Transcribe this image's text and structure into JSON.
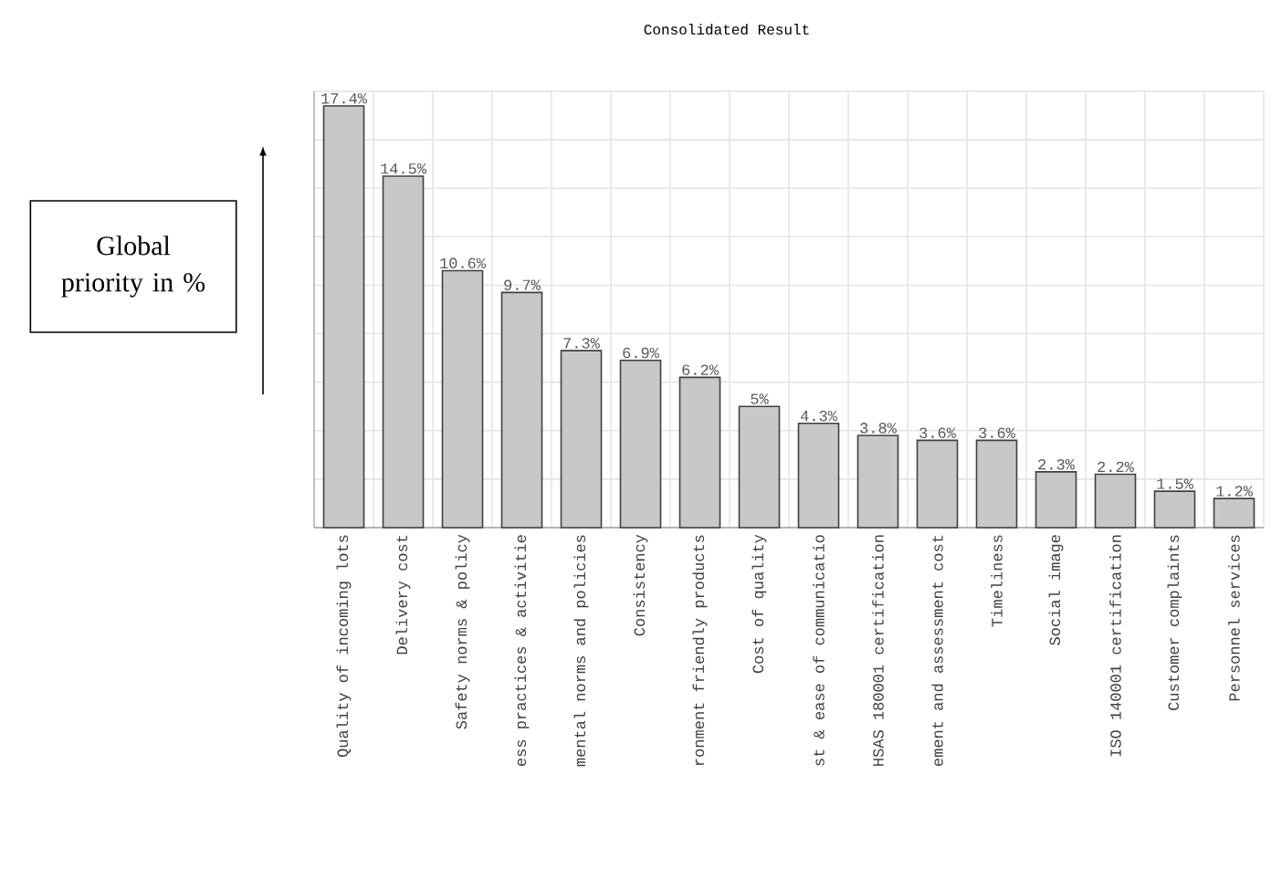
{
  "chart_data": {
    "type": "bar",
    "title": "Consolidated Result",
    "ylabel": "Global priority in %",
    "categories": [
      "Quality of incoming lots",
      "Delivery cost",
      "Safety norms & policy",
      "ess practices & activitie",
      "mental norms and policies",
      "Consistency",
      "ronment friendly products",
      "Cost of quality",
      "st & ease of communicatio",
      "HSAS 180001 certification",
      "ement and assessment cost",
      "Timeliness",
      "Social image",
      "ISO 140001 certification",
      "Customer complaints",
      "Personnel services"
    ],
    "values": [
      17.4,
      14.5,
      10.6,
      9.7,
      7.3,
      6.9,
      6.2,
      5,
      4.3,
      3.8,
      3.6,
      3.6,
      2.3,
      2.2,
      1.5,
      1.2
    ],
    "value_labels": [
      "17.4%",
      "14.5%",
      "10.6%",
      "9.7%",
      "7.3%",
      "6.9%",
      "6.2%",
      "5%",
      "4.3%",
      "3.8%",
      "3.6%",
      "3.6%",
      "2.3%",
      "2.2%",
      "1.5%",
      "1.2%"
    ],
    "color": "#c8c8c8",
    "ylim": [
      0,
      18
    ],
    "yticks": [
      {
        "value": 0,
        "label": null
      },
      {
        "value": 2,
        "label": null
      },
      {
        "value": 4,
        "label": null
      },
      {
        "value": 6,
        "label": null
      },
      {
        "value": 8,
        "label": null
      },
      {
        "value": 10,
        "label": null
      },
      {
        "value": 12,
        "label": null
      },
      {
        "value": 14,
        "label": null
      },
      {
        "value": 16,
        "label": null
      },
      {
        "value": 18,
        "label": null
      }
    ],
    "tick_labels": "x",
    "grid": true
  }
}
